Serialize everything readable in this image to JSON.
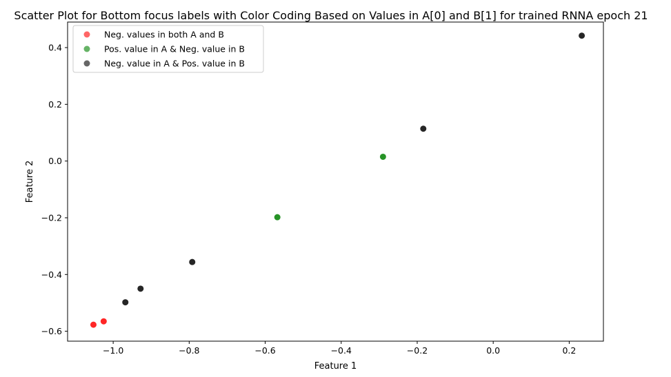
{
  "chart_data": {
    "type": "scatter",
    "title": "Scatter Plot for Bottom focus labels with Color Coding Based on Values in A[0] and B[1] for trained RNNA epoch 21",
    "xlabel": "Feature 1",
    "ylabel": "Feature 2",
    "xlim": [
      -1.12,
      0.29
    ],
    "ylim": [
      -0.635,
      0.49
    ],
    "xticks": [
      -1.0,
      -0.8,
      -0.6,
      -0.4,
      -0.2,
      0.0,
      0.2
    ],
    "xtick_labels": [
      "−1.0",
      "−0.8",
      "−0.6",
      "−0.4",
      "−0.2",
      "0.0",
      "0.2"
    ],
    "yticks": [
      -0.6,
      -0.4,
      -0.2,
      0.0,
      0.2,
      0.4
    ],
    "ytick_labels": [
      "−0.6",
      "−0.4",
      "−0.2",
      "0.0",
      "0.2",
      "0.4"
    ],
    "grid": false,
    "legend_position": "top-left",
    "series": [
      {
        "name": "Neg. values in both A and B",
        "color": "#ff0000",
        "points": [
          {
            "x": -1.052,
            "y": -0.577
          },
          {
            "x": -1.025,
            "y": -0.565
          }
        ]
      },
      {
        "name": "Pos. value in A & Neg. value in B",
        "color": "#008000",
        "points": [
          {
            "x": -0.568,
            "y": -0.198
          },
          {
            "x": -0.29,
            "y": 0.015
          }
        ]
      },
      {
        "name": "Neg. value in A & Pos. value in B",
        "color": "#000000",
        "points": [
          {
            "x": -0.968,
            "y": -0.498
          },
          {
            "x": -0.928,
            "y": -0.45
          },
          {
            "x": -0.792,
            "y": -0.356
          },
          {
            "x": -0.184,
            "y": 0.114
          },
          {
            "x": 0.233,
            "y": 0.442
          }
        ]
      }
    ]
  }
}
